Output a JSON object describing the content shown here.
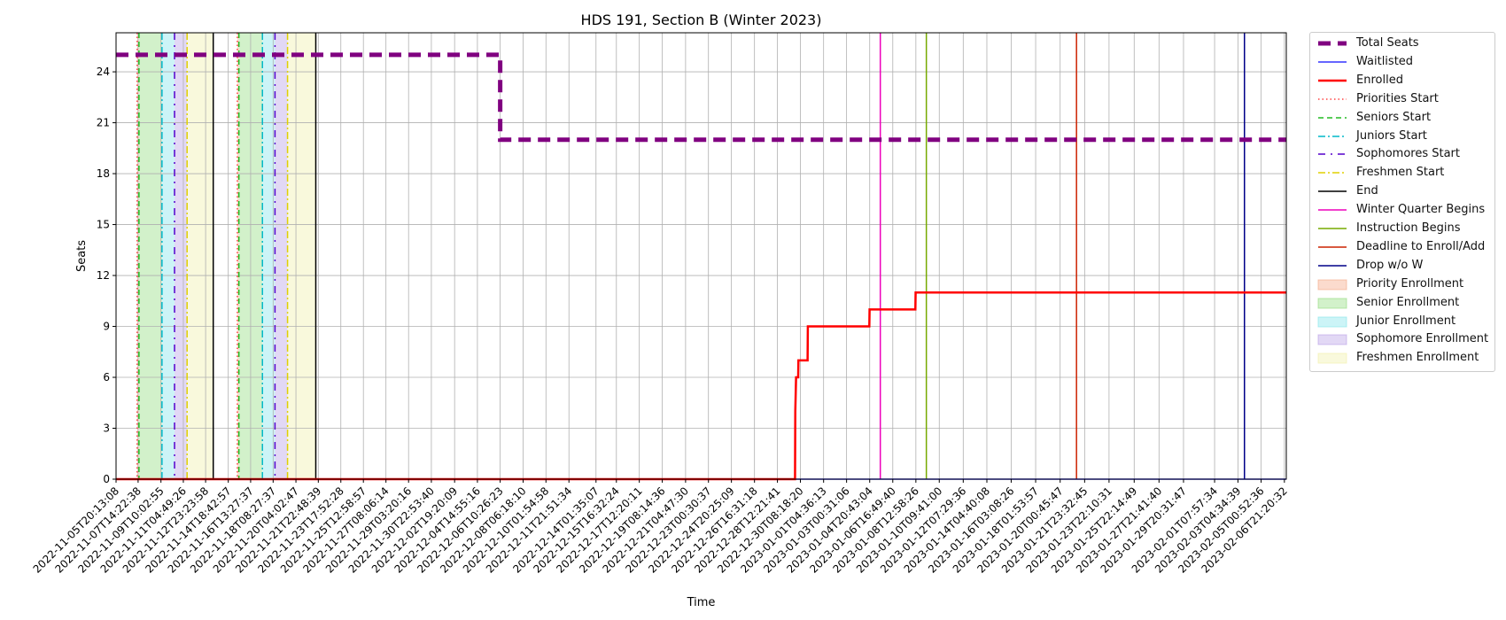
{
  "chart_data": {
    "type": "line",
    "title": "HDS 191, Section B (Winter 2023)",
    "xlabel": "Time",
    "ylabel": "Seats",
    "ylim": [
      0,
      26.3
    ],
    "yticks": [
      0,
      3,
      6,
      9,
      12,
      15,
      18,
      21,
      24
    ],
    "xlim": [
      "2022-11-05T20:13:08",
      "2023-02-07T01:00:00"
    ],
    "xticks": [
      "2022-11-05T20:13:08",
      "2022-11-07T14:22:38",
      "2022-11-09T10:02:55",
      "2022-11-11T04:49:26",
      "2022-11-12T23:23:58",
      "2022-11-14T18:42:57",
      "2022-11-16T13:27:37",
      "2022-11-18T08:27:37",
      "2022-11-20T04:02:47",
      "2022-11-21T22:48:39",
      "2022-11-23T17:52:28",
      "2022-11-25T12:58:57",
      "2022-11-27T08:06:14",
      "2022-11-29T03:20:16",
      "2022-11-30T22:53:40",
      "2022-12-02T19:20:09",
      "2022-12-04T14:55:16",
      "2022-12-06T10:26:23",
      "2022-12-08T06:18:10",
      "2022-12-10T01:54:58",
      "2022-12-11T21:51:34",
      "2022-12-14T01:35:07",
      "2022-12-15T16:32:24",
      "2022-12-17T12:20:11",
      "2022-12-19T08:14:36",
      "2022-12-21T04:47:30",
      "2022-12-23T00:30:37",
      "2022-12-24T20:25:09",
      "2022-12-26T16:31:18",
      "2022-12-28T12:21:41",
      "2022-12-30T08:18:20",
      "2023-01-01T04:36:13",
      "2023-01-03T00:31:06",
      "2023-01-04T20:43:04",
      "2023-01-06T16:49:40",
      "2023-01-08T12:58:26",
      "2023-01-10T09:41:00",
      "2023-01-12T07:29:36",
      "2023-01-14T04:40:08",
      "2023-01-16T03:08:26",
      "2023-01-18T01:53:57",
      "2023-01-20T00:45:47",
      "2023-01-21T23:32:45",
      "2023-01-23T22:10:31",
      "2023-01-25T22:14:49",
      "2023-01-27T21:41:40",
      "2023-01-29T20:31:47",
      "2023-02-01T07:57:34",
      "2023-02-03T04:34:39",
      "2023-02-05T00:52:36",
      "2023-02-06T21:20:32"
    ],
    "grid": true,
    "legend_position": "outside right",
    "series": [
      {
        "name": "Total Seats",
        "color": "#800080",
        "style": "dashed-thick",
        "points": [
          [
            "2022-11-05T20:13:08",
            25
          ],
          [
            "2022-12-06T10:26:23",
            25
          ],
          [
            "2022-12-06T10:26:23",
            20
          ],
          [
            "2023-02-07T01:00:00",
            20
          ]
        ]
      },
      {
        "name": "Waitlisted",
        "color": "#3333ff",
        "style": "solid",
        "points": [
          [
            "2022-11-05T20:13:08",
            0
          ],
          [
            "2023-02-07T01:00:00",
            0
          ]
        ]
      },
      {
        "name": "Enrolled",
        "color": "#ff0000",
        "style": "solid-thick",
        "points": [
          [
            "2022-11-05T20:13:08",
            0
          ],
          [
            "2022-12-29T22:00:00",
            0
          ],
          [
            "2022-12-29T22:30:00",
            4
          ],
          [
            "2022-12-30T00:00:00",
            6
          ],
          [
            "2022-12-30T04:00:00",
            6
          ],
          [
            "2022-12-30T04:30:00",
            7
          ],
          [
            "2022-12-30T22:00:00",
            7
          ],
          [
            "2022-12-30T22:30:00",
            9
          ],
          [
            "2023-01-04T20:00:00",
            9
          ],
          [
            "2023-01-04T20:30:00",
            10
          ],
          [
            "2023-01-08T12:00:00",
            10
          ],
          [
            "2023-01-08T12:30:00",
            11
          ],
          [
            "2023-02-07T01:00:00",
            11
          ]
        ]
      }
    ],
    "vlines": [
      {
        "name": "Priorities Start",
        "color": "#ff4444",
        "style": "dotted",
        "dates": [
          "2022-11-07T12:30:00",
          "2022-11-15T12:00:00"
        ]
      },
      {
        "name": "Seniors Start",
        "color": "#22bb22",
        "style": "dashed",
        "dates": [
          "2022-11-07T16:00:00",
          "2022-11-15T15:00:00"
        ]
      },
      {
        "name": "Juniors Start",
        "color": "#00b8c8",
        "style": "dashdot",
        "dates": [
          "2022-11-09T12:00:00",
          "2022-11-17T12:00:00"
        ]
      },
      {
        "name": "Sophomores Start",
        "color": "#5500cc",
        "style": "dashdot-loose",
        "dates": [
          "2022-11-10T12:00:00",
          "2022-11-18T12:00:00"
        ]
      },
      {
        "name": "Freshmen Start",
        "color": "#e0d000",
        "style": "dashdot",
        "dates": [
          "2022-11-11T12:00:00",
          "2022-11-19T12:00:00"
        ]
      },
      {
        "name": "End",
        "color": "#000000",
        "style": "solid",
        "dates": [
          "2022-11-13T14:00:00",
          "2022-11-21T18:00:00"
        ]
      },
      {
        "name": "Winter Quarter Begins",
        "color": "#ee00bb",
        "style": "solid",
        "dates": [
          "2023-01-05T17:00:00"
        ]
      },
      {
        "name": "Instruction Begins",
        "color": "#77aa00",
        "style": "solid",
        "dates": [
          "2023-01-09T09:00:00"
        ]
      },
      {
        "name": "Deadline to Enroll/Add",
        "color": "#cc2200",
        "style": "solid",
        "dates": [
          "2023-01-21T08:00:00"
        ]
      },
      {
        "name": "Drop w/o W",
        "color": "#000088",
        "style": "solid",
        "dates": [
          "2023-02-03T17:00:00"
        ]
      }
    ],
    "spans": [
      {
        "name": "Priority Enrollment",
        "color": "#f4a582",
        "ranges": [
          [
            "2022-11-07T12:30:00",
            "2022-11-07T16:00:00"
          ],
          [
            "2022-11-15T12:00:00",
            "2022-11-15T15:00:00"
          ]
        ]
      },
      {
        "name": "Senior Enrollment",
        "color": "#8fdc7a",
        "ranges": [
          [
            "2022-11-07T16:00:00",
            "2022-11-09T12:00:00"
          ],
          [
            "2022-11-15T15:00:00",
            "2022-11-17T12:00:00"
          ]
        ]
      },
      {
        "name": "Junior Enrollment",
        "color": "#80e4ea",
        "ranges": [
          [
            "2022-11-09T12:00:00",
            "2022-11-10T12:00:00"
          ],
          [
            "2022-11-17T12:00:00",
            "2022-11-18T12:00:00"
          ]
        ]
      },
      {
        "name": "Sophomore Enrollment",
        "color": "#b79ee6",
        "ranges": [
          [
            "2022-11-10T12:00:00",
            "2022-11-11T12:00:00"
          ],
          [
            "2022-11-18T12:00:00",
            "2022-11-19T12:00:00"
          ]
        ]
      },
      {
        "name": "Freshmen Enrollment",
        "color": "#f1f0a8",
        "ranges": [
          [
            "2022-11-11T12:00:00",
            "2022-11-13T14:00:00"
          ],
          [
            "2022-11-19T12:00:00",
            "2022-11-21T18:00:00"
          ]
        ]
      }
    ],
    "legend": [
      {
        "label": "Total Seats",
        "kind": "line",
        "color": "#800080",
        "style": "dashed-thick"
      },
      {
        "label": "Waitlisted",
        "kind": "line",
        "color": "#3333ff",
        "style": "solid"
      },
      {
        "label": "Enrolled",
        "kind": "line",
        "color": "#ff0000",
        "style": "solid-thick"
      },
      {
        "label": "Priorities Start",
        "kind": "line",
        "color": "#ff4444",
        "style": "dotted"
      },
      {
        "label": "Seniors Start",
        "kind": "line",
        "color": "#22bb22",
        "style": "dashed"
      },
      {
        "label": "Juniors Start",
        "kind": "line",
        "color": "#00b8c8",
        "style": "dashdot"
      },
      {
        "label": "Sophomores Start",
        "kind": "line",
        "color": "#5500cc",
        "style": "dashdot-loose"
      },
      {
        "label": "Freshmen Start",
        "kind": "line",
        "color": "#e0d000",
        "style": "dashdot"
      },
      {
        "label": "End",
        "kind": "line",
        "color": "#000000",
        "style": "solid"
      },
      {
        "label": "Winter Quarter Begins",
        "kind": "line",
        "color": "#ee00bb",
        "style": "solid"
      },
      {
        "label": "Instruction Begins",
        "kind": "line",
        "color": "#77aa00",
        "style": "solid"
      },
      {
        "label": "Deadline to Enroll/Add",
        "kind": "line",
        "color": "#cc2200",
        "style": "solid"
      },
      {
        "label": "Drop w/o W",
        "kind": "line",
        "color": "#000088",
        "style": "solid"
      },
      {
        "label": "Priority Enrollment",
        "kind": "patch",
        "color": "#f4a582"
      },
      {
        "label": "Senior Enrollment",
        "kind": "patch",
        "color": "#8fdc7a"
      },
      {
        "label": "Junior Enrollment",
        "kind": "patch",
        "color": "#80e4ea"
      },
      {
        "label": "Sophomore Enrollment",
        "kind": "patch",
        "color": "#b79ee6"
      },
      {
        "label": "Freshmen Enrollment",
        "kind": "patch",
        "color": "#f1f0a8"
      }
    ]
  }
}
